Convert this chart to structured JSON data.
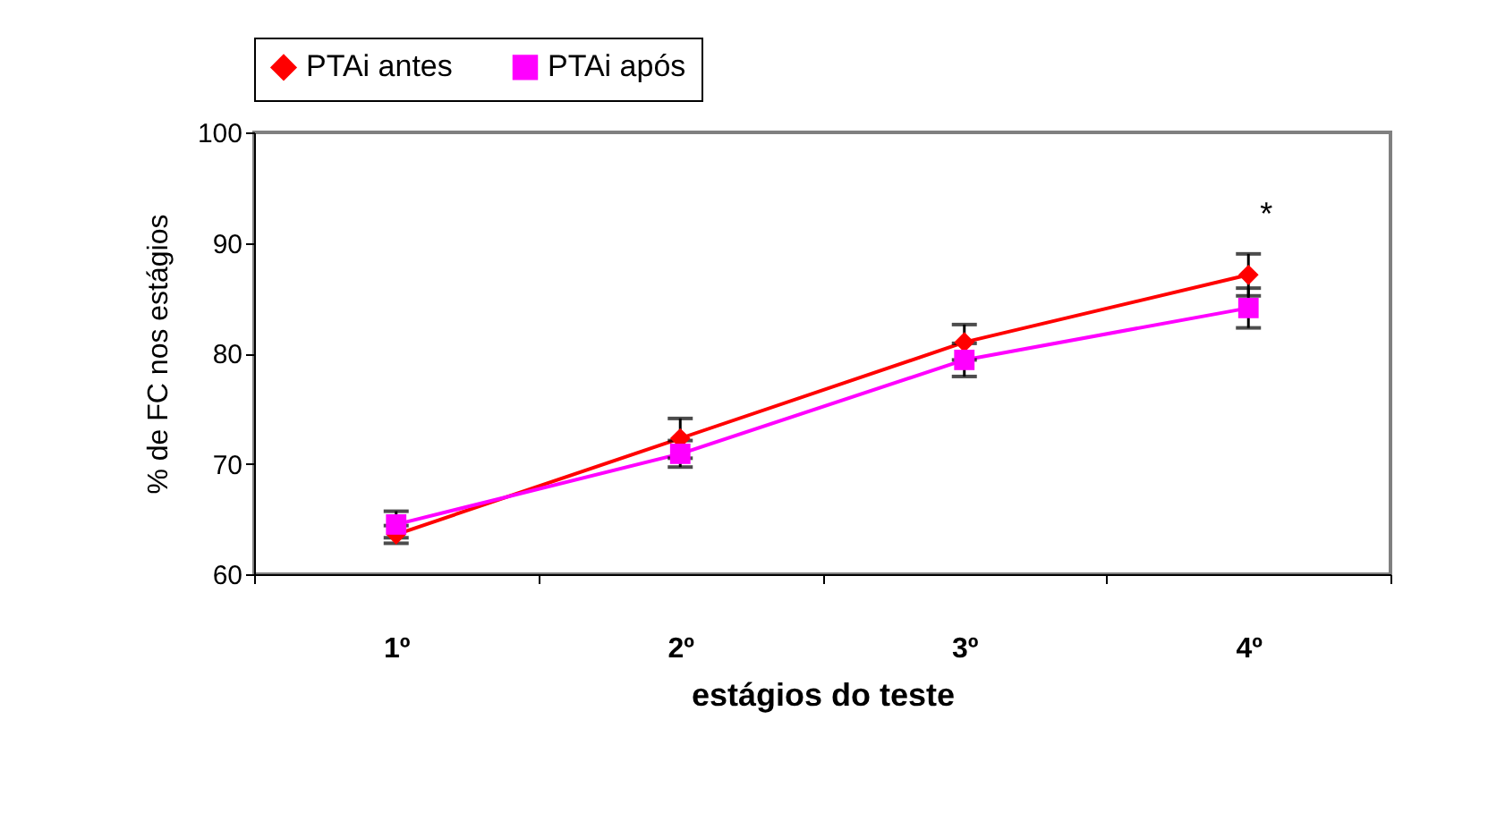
{
  "chart_data": {
    "type": "line",
    "xlabel": "estágios do teste",
    "ylabel": "% de FC nos estágios",
    "categories": [
      "1º",
      "2º",
      "3º",
      "4º"
    ],
    "series": [
      {
        "name": "PTAi antes",
        "color": "#ff0000",
        "marker": "diamond",
        "values": [
          63.6,
          72.3,
          81.0,
          87.1
        ],
        "errors": [
          0.8,
          1.8,
          1.6,
          1.9
        ]
      },
      {
        "name": "PTAi após",
        "color": "#ff00ff",
        "marker": "square",
        "values": [
          64.5,
          70.9,
          79.4,
          84.1
        ],
        "errors": [
          1.2,
          1.2,
          1.5,
          1.8
        ]
      }
    ],
    "ylim": [
      60,
      100
    ],
    "yticks": [
      60,
      70,
      80,
      90,
      100
    ],
    "grid": false,
    "legend": "top",
    "annotations": [
      {
        "text": "*",
        "x": "4º",
        "y": 87.1
      }
    ]
  }
}
